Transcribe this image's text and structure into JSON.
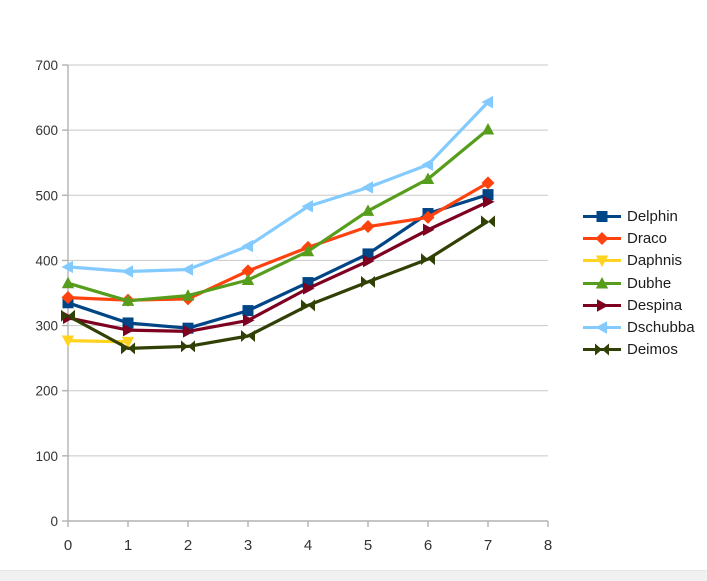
{
  "window": {
    "background_color": "#ffffff",
    "bottom_bar_color": "#f1f1f1"
  },
  "chart_data": {
    "type": "line",
    "title": "",
    "xlabel": "",
    "ylabel": "",
    "xlim": [
      0,
      8
    ],
    "ylim": [
      0,
      700
    ],
    "x": [
      0,
      1,
      2,
      3,
      4,
      5,
      6,
      7
    ],
    "x_ticks": [
      "0",
      "1",
      "2",
      "3",
      "4",
      "5",
      "6",
      "7",
      "8"
    ],
    "y_ticks": [
      "0",
      "100",
      "200",
      "300",
      "400",
      "500",
      "600",
      "700"
    ],
    "grid": "horizontal-only",
    "legend_position": "right",
    "axis_color": "#b2b2b2",
    "gridline_color": "#c8c8c8",
    "tick_label_color": "#333333",
    "series": [
      {
        "name": "Delphin",
        "color": "#004586",
        "marker": "square",
        "values": [
          335,
          304,
          296,
          323,
          366,
          410,
          472,
          501
        ]
      },
      {
        "name": "Draco",
        "color": "#FF420E",
        "marker": "diamond",
        "values": [
          343,
          339,
          341,
          384,
          420,
          452,
          466,
          519
        ]
      },
      {
        "name": "Daphnis",
        "color": "#FFD320",
        "marker": "triangle-down",
        "values": [
          277,
          275,
          null,
          null,
          null,
          null,
          null,
          null
        ]
      },
      {
        "name": "Dubhe",
        "color": "#579D1C",
        "marker": "triangle-up",
        "values": [
          365,
          338,
          346,
          370,
          414,
          476,
          525,
          601
        ]
      },
      {
        "name": "Despina",
        "color": "#7E0021",
        "marker": "triangle-right",
        "values": [
          312,
          293,
          291,
          308,
          357,
          399,
          447,
          490
        ]
      },
      {
        "name": "Dschubba",
        "color": "#83CAFF",
        "marker": "triangle-left",
        "values": [
          390,
          383,
          386,
          422,
          483,
          512,
          547,
          643
        ]
      },
      {
        "name": "Deimos",
        "color": "#314004",
        "marker": "bowtie",
        "values": [
          315,
          265,
          268,
          284,
          331,
          367,
          402,
          460
        ]
      }
    ]
  }
}
